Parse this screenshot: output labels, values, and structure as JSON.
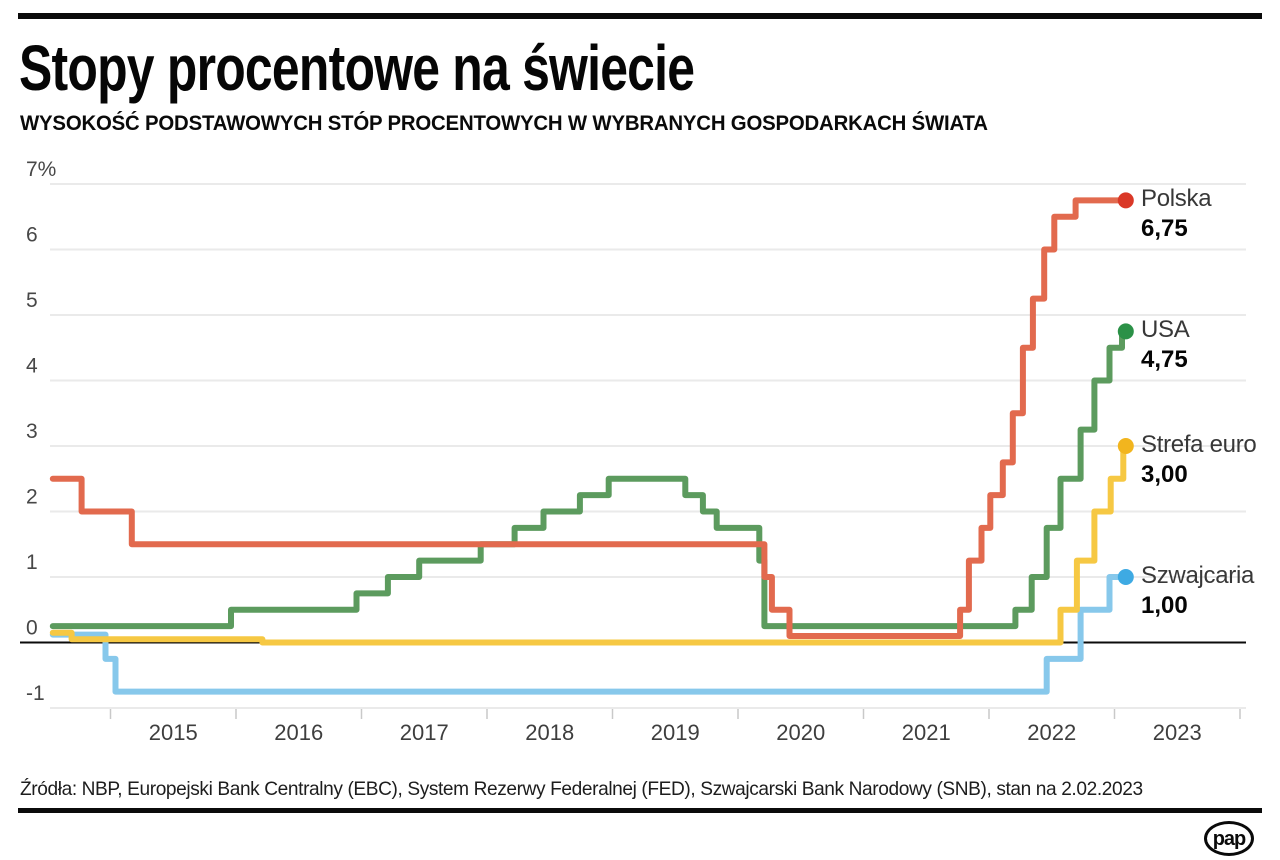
{
  "header": {
    "title": "Stopy procentowe na świecie",
    "subtitle": "WYSOKOŚĆ PODSTAWOWYCH STÓP PROCENTOWYCH W WYBRANYCH GOSPODARKACH ŚWIATA"
  },
  "footer": {
    "source": "Źródła: NBP, Europejski Bank Centralny (EBC), System Rezerwy Federalnej (FED), Szwajcarski Bank Narodowy (SNB), stan na 2.02.2023",
    "logo_text": "pap"
  },
  "chart_data": {
    "type": "line",
    "line_style": "step-after",
    "title": "Stopy procentowe na świecie",
    "ylabel": "%",
    "grid": "horizontal-only",
    "legend_position": "right-of-line-end",
    "x_start": 2014.54,
    "x_end": 2023.09,
    "x_axis_right_edge": 2024.04,
    "ylim": [
      -1,
      7
    ],
    "y_ticks": [
      {
        "label": "7%",
        "value": 7
      },
      {
        "label": "6",
        "value": 6
      },
      {
        "label": "5",
        "value": 5
      },
      {
        "label": "4",
        "value": 4
      },
      {
        "label": "3",
        "value": 3
      },
      {
        "label": "2",
        "value": 2
      },
      {
        "label": "1",
        "value": 1
      },
      {
        "label": "0",
        "value": 0
      },
      {
        "label": "-1",
        "value": -1
      }
    ],
    "x_ticks": [
      {
        "label": "2015",
        "year": 2015
      },
      {
        "label": "2016",
        "year": 2016
      },
      {
        "label": "2017",
        "year": 2017
      },
      {
        "label": "2018",
        "year": 2018
      },
      {
        "label": "2019",
        "year": 2019
      },
      {
        "label": "2020",
        "year": 2020
      },
      {
        "label": "2021",
        "year": 2021
      },
      {
        "label": "2022",
        "year": 2022
      },
      {
        "label": "2023",
        "year": 2023
      }
    ],
    "colors": {
      "grid": "#eaeaea",
      "zero_line": "#0b0b0b",
      "axis_tick": "#c9c9c9"
    },
    "series": [
      {
        "name": "Polska",
        "value_label": "6,75",
        "end_value": 6.75,
        "color": "#e26a4e",
        "dot_color": "#da3827",
        "points": [
          [
            2014.54,
            2.5
          ],
          [
            2014.77,
            2.0
          ],
          [
            2015.17,
            1.5
          ],
          [
            2020.21,
            1.0
          ],
          [
            2020.27,
            0.5
          ],
          [
            2020.41,
            0.1
          ],
          [
            2021.77,
            0.5
          ],
          [
            2021.84,
            1.25
          ],
          [
            2021.94,
            1.75
          ],
          [
            2022.01,
            2.25
          ],
          [
            2022.11,
            2.75
          ],
          [
            2022.19,
            3.5
          ],
          [
            2022.27,
            4.5
          ],
          [
            2022.35,
            5.25
          ],
          [
            2022.44,
            6.0
          ],
          [
            2022.52,
            6.5
          ],
          [
            2022.69,
            6.75
          ]
        ]
      },
      {
        "name": "USA",
        "value_label": "4,75",
        "end_value": 4.75,
        "color": "#5c9b5e",
        "dot_color": "#2b9147",
        "points": [
          [
            2014.54,
            0.25
          ],
          [
            2015.96,
            0.5
          ],
          [
            2016.96,
            0.75
          ],
          [
            2017.21,
            1.0
          ],
          [
            2017.46,
            1.25
          ],
          [
            2017.95,
            1.5
          ],
          [
            2018.22,
            1.75
          ],
          [
            2018.45,
            2.0
          ],
          [
            2018.74,
            2.25
          ],
          [
            2018.97,
            2.5
          ],
          [
            2019.58,
            2.25
          ],
          [
            2019.72,
            2.0
          ],
          [
            2019.83,
            1.75
          ],
          [
            2020.17,
            1.25
          ],
          [
            2020.21,
            0.25
          ],
          [
            2022.21,
            0.5
          ],
          [
            2022.34,
            1.0
          ],
          [
            2022.46,
            1.75
          ],
          [
            2022.57,
            2.5
          ],
          [
            2022.73,
            3.25
          ],
          [
            2022.84,
            4.0
          ],
          [
            2022.96,
            4.5
          ],
          [
            2023.06,
            4.75
          ]
        ]
      },
      {
        "name": "Strefa euro",
        "value_label": "3,00",
        "end_value": 3.0,
        "color": "#f6c843",
        "dot_color": "#f2b51e",
        "points": [
          [
            2014.54,
            0.15
          ],
          [
            2014.69,
            0.05
          ],
          [
            2016.21,
            0.0
          ],
          [
            2022.57,
            0.5
          ],
          [
            2022.7,
            1.25
          ],
          [
            2022.84,
            2.0
          ],
          [
            2022.97,
            2.5
          ],
          [
            2023.07,
            3.0
          ]
        ]
      },
      {
        "name": "Szwajcaria",
        "value_label": "1,00",
        "end_value": 1.0,
        "color": "#87c8eb",
        "dot_color": "#3eaae3",
        "points": [
          [
            2014.54,
            0.12
          ],
          [
            2014.96,
            -0.25
          ],
          [
            2015.04,
            -0.75
          ],
          [
            2022.46,
            -0.25
          ],
          [
            2022.73,
            0.5
          ],
          [
            2022.96,
            1.0
          ]
        ]
      }
    ]
  }
}
